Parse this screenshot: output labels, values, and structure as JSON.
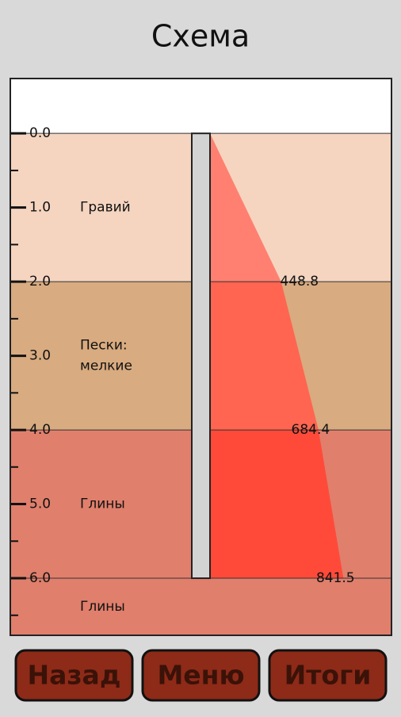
{
  "header": {
    "title": "Схема"
  },
  "scale": {
    "depth_range": [
      -0.74,
      6.77
    ],
    "ticks": [
      {
        "value": 0,
        "label": "0.0"
      },
      {
        "value": 1,
        "label": "1.0"
      },
      {
        "value": 2,
        "label": "2.0"
      },
      {
        "value": 3,
        "label": "3.0"
      },
      {
        "value": 4,
        "label": "4.0"
      },
      {
        "value": 5,
        "label": "5.0"
      },
      {
        "value": 6,
        "label": "6.0"
      }
    ],
    "minor_ticks": [
      0.5,
      1.5,
      2.5,
      3.5,
      4.5,
      5.5,
      6.5
    ]
  },
  "layers": [
    {
      "name": [
        "Гравий"
      ],
      "top": 0,
      "bottom": 2,
      "color": "#f5d5c0"
    },
    {
      "name": [
        "Пески:",
        "мелкие"
      ],
      "top": 2,
      "bottom": 4,
      "color": "#d8ab80"
    },
    {
      "name": [
        "Глины"
      ],
      "top": 4,
      "bottom": 6,
      "color": "#e07f6c"
    },
    {
      "name": [
        "Глины"
      ],
      "top": 6,
      "bottom": 6.77,
      "color": "#e07f6c"
    }
  ],
  "pile": {
    "top": 0,
    "bottom": 6
  },
  "pressure": {
    "depths": [
      2,
      4,
      6
    ],
    "values": [
      448.8,
      684.4,
      841.5
    ],
    "colors": [
      "#ff8070",
      "#ff6550",
      "#ff4a3a"
    ]
  },
  "buttons": [
    "Назад",
    "Меню",
    "Итоги"
  ]
}
